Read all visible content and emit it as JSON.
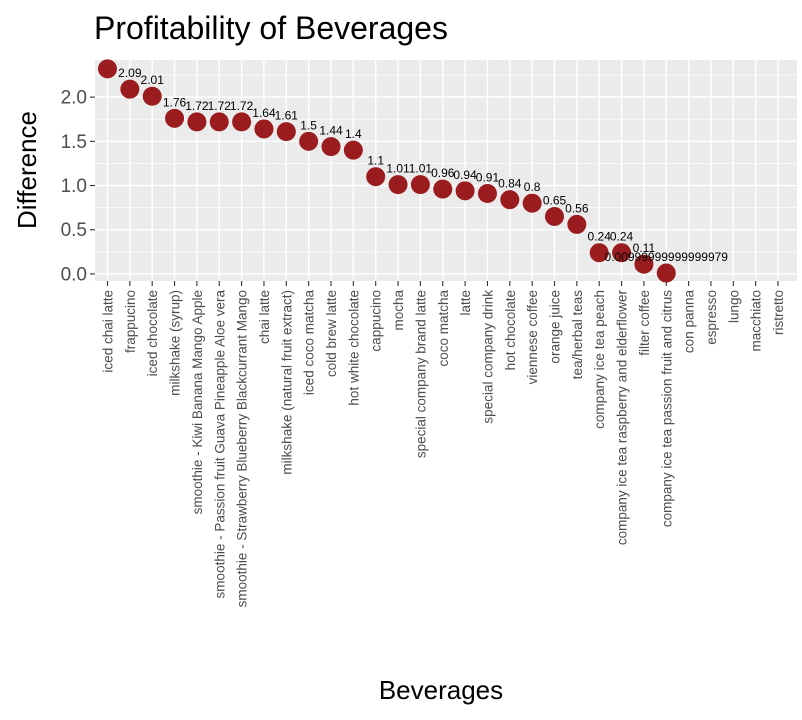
{
  "chart_data": {
    "type": "scatter",
    "title": "Profitability of Beverages",
    "xlabel": "Beverages",
    "ylabel": "Difference",
    "ylim": [
      -0.08,
      2.42
    ],
    "yticks": [
      "0.0",
      "0.5",
      "1.0",
      "1.5",
      "2.0"
    ],
    "grid": true,
    "legend": "none",
    "point_color": "#9b1c1f",
    "panel_color": "#ebebeb",
    "categories": [
      "iced chai latte",
      "frappucino",
      "iced chocolate",
      "milkshake (syrup)",
      "smoothie - Kiwi Banana Mango Apple",
      "smoothie - Passion fruit Guava Pineapple Aloe vera",
      "smoothie - Strawberry Blueberry Blackcurrant Mango",
      "chai latte",
      "milkshake (natural fruit extract)",
      "iced coco matcha",
      "cold brew latte",
      "hot white chocolate",
      "cappucino",
      "mocha",
      "special company brand latte",
      "coco matcha",
      "latte",
      "special company drink",
      "hot chocolate",
      "viennese coffee",
      "orange juice",
      "tea/herbal teas",
      "company ice tea peach",
      "company ice tea raspberry and elderflower",
      "filter coffee",
      "company ice tea passion fruit and citrus",
      "con panna",
      "espresso",
      "lungo",
      "macchiato",
      "ristretto"
    ],
    "values": [
      2.32,
      2.09,
      2.01,
      1.76,
      1.72,
      1.72,
      1.72,
      1.64,
      1.61,
      1.5,
      1.44,
      1.4,
      1.1,
      1.01,
      1.01,
      0.96,
      0.94,
      0.91,
      0.84,
      0.8,
      0.65,
      0.56,
      0.24,
      0.24,
      0.11,
      0.00999999999999979,
      null,
      null,
      null,
      null,
      null
    ],
    "data_labels": [
      "",
      "2.09",
      "2.01",
      "1.76",
      "1.72",
      "1.72",
      "1.72",
      "1.64",
      "1.61",
      "1.5",
      "1.44",
      "1.4",
      "1.1",
      "1.01",
      "1.01",
      "0.96",
      "0.94",
      "0.91",
      "0.84",
      "0.8",
      "0.65",
      "0.56",
      "0.24",
      "0.24",
      "0.11",
      "0.00999999999999979",
      "",
      "",
      "",
      "",
      ""
    ]
  }
}
